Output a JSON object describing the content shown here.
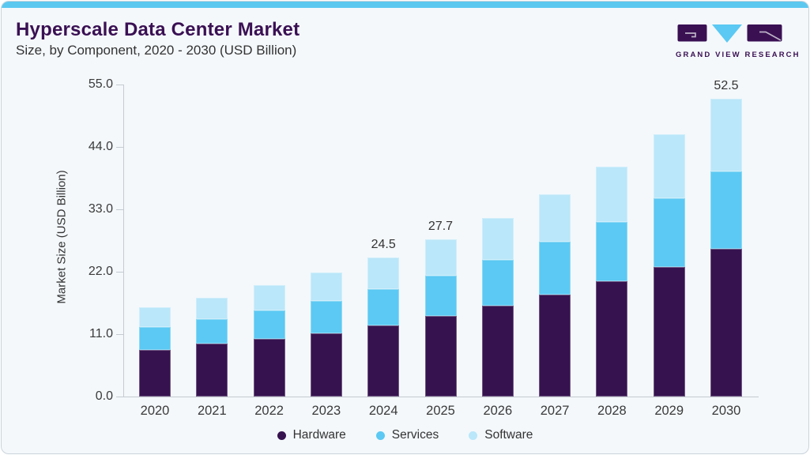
{
  "header": {
    "title": "Hyperscale Data Center Market",
    "subtitle": "Size, by Component, 2020 - 2030 (USD Billion)",
    "brand": "GRAND VIEW RESEARCH"
  },
  "colors": {
    "accent_bar": "#5BC8F0",
    "title_text": "#3A1053",
    "body_text": "#333333",
    "axis_line": "#C5CBD1",
    "card_background": "#F4F8FB",
    "hardware": "#36124F",
    "services": "#5BC9F3",
    "software": "#BAE7F9"
  },
  "chart_data": {
    "type": "bar",
    "stacked": true,
    "title": "Hyperscale Data Center Market",
    "subtitle": "Size, by Component, 2020 - 2030 (USD Billion)",
    "xlabel": "",
    "ylabel": "Market Size (USD Billion)",
    "categories": [
      "2020",
      "2021",
      "2022",
      "2023",
      "2024",
      "2025",
      "2026",
      "2027",
      "2028",
      "2029",
      "2030"
    ],
    "series": [
      {
        "name": "Hardware",
        "color": "#36124F",
        "values": [
          8.2,
          9.3,
          10.2,
          11.2,
          12.5,
          14.2,
          16.0,
          18.0,
          20.3,
          22.9,
          26.0
        ]
      },
      {
        "name": "Services",
        "color": "#5BC9F3",
        "values": [
          4.0,
          4.4,
          5.0,
          5.7,
          6.4,
          7.1,
          8.1,
          9.3,
          10.5,
          12.1,
          13.7
        ]
      },
      {
        "name": "Software",
        "color": "#BAE7F9",
        "values": [
          3.5,
          3.7,
          4.4,
          4.9,
          5.6,
          6.4,
          7.3,
          8.3,
          9.7,
          11.2,
          12.8
        ]
      }
    ],
    "totals_shown": [
      {
        "category": "2024",
        "label": "24.5"
      },
      {
        "category": "2025",
        "label": "27.7"
      },
      {
        "category": "2030",
        "label": "52.5"
      }
    ],
    "yticks": [
      "0.0",
      "11.0",
      "22.0",
      "33.0",
      "44.0",
      "55.0"
    ],
    "ylim": [
      0,
      55
    ],
    "grid": false,
    "legend_position": "bottom"
  }
}
